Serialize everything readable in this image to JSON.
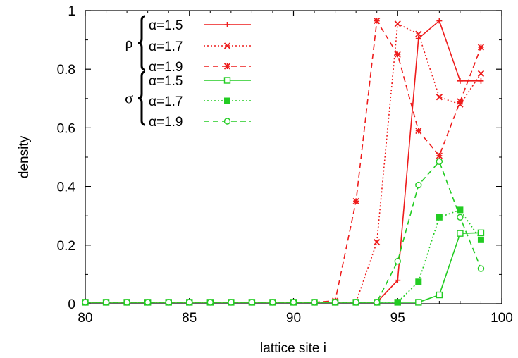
{
  "chart_data": {
    "type": "line",
    "title": "",
    "xlabel": "lattice site i",
    "ylabel": "density",
    "xlim": [
      80,
      100
    ],
    "ylim": [
      0,
      1
    ],
    "xticks": [
      80,
      85,
      90,
      95,
      100
    ],
    "yticks": [
      0,
      0.2,
      0.4,
      0.6,
      0.8,
      1
    ],
    "ytick_labels": [
      "0",
      "0.2",
      "0.4",
      "0.6",
      "0.8",
      "1"
    ],
    "grid": false,
    "legend_position": "top-left",
    "legend_groups": [
      {
        "symbol": "ρ",
        "series_indices": [
          0,
          1,
          2
        ]
      },
      {
        "symbol": "σ",
        "series_indices": [
          3,
          4,
          5
        ]
      }
    ],
    "x": [
      80,
      81,
      82,
      83,
      84,
      85,
      86,
      87,
      88,
      89,
      90,
      91,
      92,
      93,
      94,
      95,
      96,
      97,
      98,
      99
    ],
    "series": [
      {
        "name": "α=1.5",
        "color": "#ee1c1c",
        "dash": "solid",
        "marker": "plus",
        "values": [
          0.005,
          0.005,
          0.005,
          0.005,
          0.005,
          0.005,
          0.005,
          0.005,
          0.005,
          0.005,
          0.005,
          0.005,
          0.005,
          0.005,
          0.005,
          0.08,
          0.905,
          0.965,
          0.76,
          0.76
        ]
      },
      {
        "name": "α=1.7",
        "color": "#ee1c1c",
        "dash": "dotted",
        "marker": "x",
        "values": [
          0.005,
          0.005,
          0.005,
          0.005,
          0.005,
          0.005,
          0.005,
          0.005,
          0.005,
          0.005,
          0.005,
          0.005,
          0.005,
          0.005,
          0.21,
          0.955,
          0.92,
          0.705,
          0.68,
          0.785
        ]
      },
      {
        "name": "α=1.9",
        "color": "#ee1c1c",
        "dash": "dashed",
        "marker": "star",
        "values": [
          0.005,
          0.005,
          0.005,
          0.005,
          0.005,
          0.005,
          0.005,
          0.005,
          0.005,
          0.005,
          0.005,
          0.005,
          0.01,
          0.35,
          0.965,
          0.85,
          0.59,
          0.505,
          0.69,
          0.875
        ]
      },
      {
        "name": "α=1.5",
        "color": "#22cc22",
        "dash": "solid",
        "marker": "square-open",
        "values": [
          0.005,
          0.005,
          0.005,
          0.005,
          0.005,
          0.005,
          0.005,
          0.005,
          0.005,
          0.005,
          0.005,
          0.005,
          0.005,
          0.005,
          0.005,
          0.005,
          0.005,
          0.03,
          0.24,
          0.242
        ]
      },
      {
        "name": "α=1.7",
        "color": "#22cc22",
        "dash": "dotted",
        "marker": "square-filled",
        "values": [
          0.005,
          0.005,
          0.005,
          0.005,
          0.005,
          0.005,
          0.005,
          0.005,
          0.005,
          0.005,
          0.005,
          0.005,
          0.005,
          0.005,
          0.005,
          0.005,
          0.075,
          0.295,
          0.32,
          0.218
        ]
      },
      {
        "name": "α=1.9",
        "color": "#22cc22",
        "dash": "dashed",
        "marker": "circle-open",
        "values": [
          0.005,
          0.005,
          0.005,
          0.005,
          0.005,
          0.005,
          0.005,
          0.005,
          0.005,
          0.005,
          0.005,
          0.005,
          0.005,
          0.005,
          0.005,
          0.145,
          0.405,
          0.485,
          0.295,
          0.12
        ]
      }
    ]
  }
}
